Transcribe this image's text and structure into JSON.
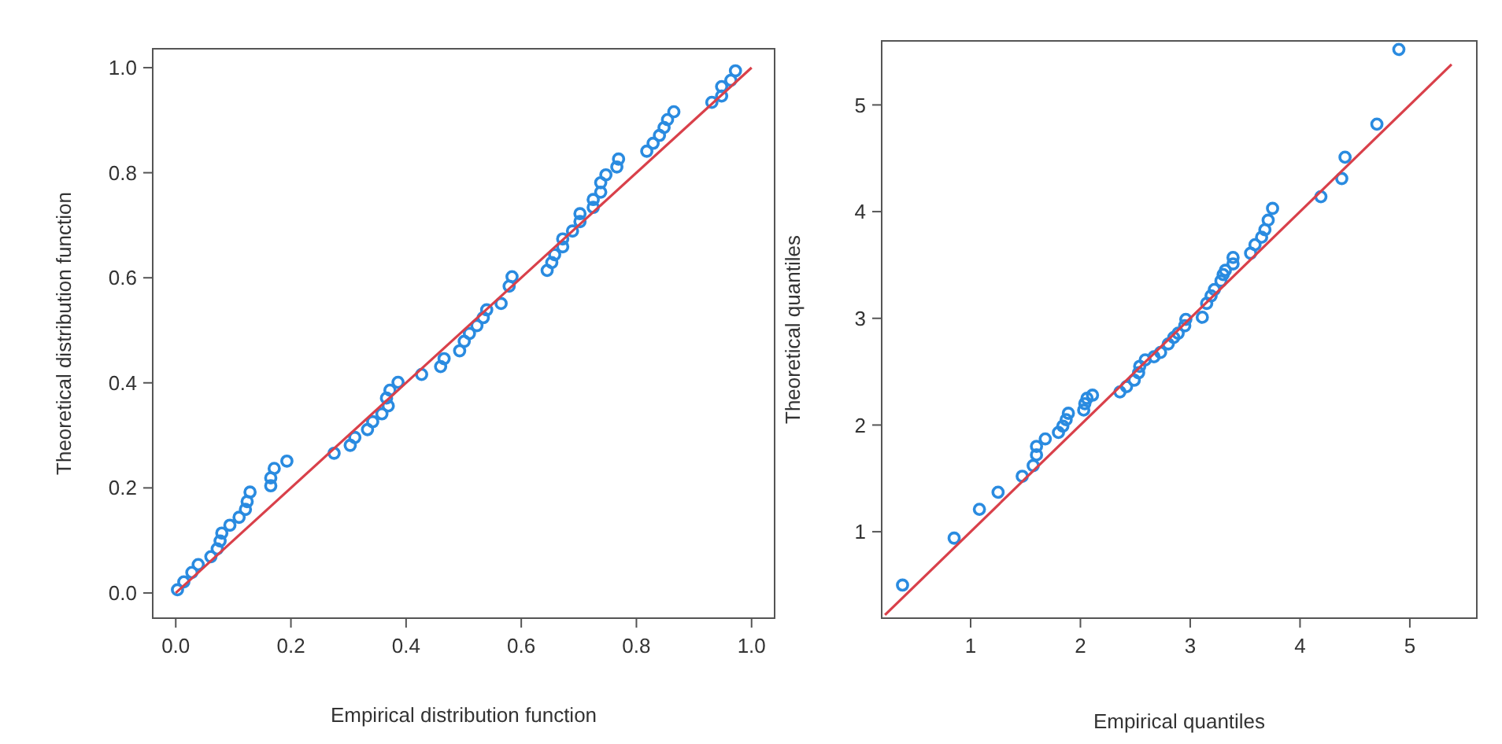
{
  "chart_data": [
    {
      "type": "scatter",
      "xlabel": "Empirical distribution function",
      "ylabel": "Theoretical distribution function",
      "xlim": [
        -0.04,
        1.04
      ],
      "ylim": [
        -0.048,
        1.036
      ],
      "xticks": [
        {
          "value": 0,
          "label": "0.0"
        },
        {
          "value": 0.2,
          "label": "0.2"
        },
        {
          "value": 0.4,
          "label": "0.4"
        },
        {
          "value": 0.6,
          "label": "0.6"
        },
        {
          "value": 0.8,
          "label": "0.8"
        },
        {
          "value": 1,
          "label": "1.0"
        }
      ],
      "yticks": [
        {
          "value": 0,
          "label": "0.0"
        },
        {
          "value": 0.2,
          "label": "0.2"
        },
        {
          "value": 0.4,
          "label": "0.4"
        },
        {
          "value": 0.6,
          "label": "0.6"
        },
        {
          "value": 0.8,
          "label": "0.8"
        },
        {
          "value": 1,
          "label": "1.0"
        }
      ],
      "series": [
        {
          "marker": "circle",
          "color": "#2a8be0",
          "x": [
            0.003,
            0.014,
            0.028,
            0.039,
            0.061,
            0.072,
            0.077,
            0.08,
            0.094,
            0.11,
            0.121,
            0.124,
            0.129,
            0.165,
            0.165,
            0.171,
            0.193,
            0.275,
            0.303,
            0.311,
            0.333,
            0.342,
            0.358,
            0.369,
            0.366,
            0.372,
            0.386,
            0.427,
            0.46,
            0.466,
            0.493,
            0.501,
            0.51,
            0.523,
            0.534,
            0.54,
            0.565,
            0.579,
            0.584,
            0.645,
            0.653,
            0.658,
            0.672,
            0.672,
            0.689,
            0.702,
            0.702,
            0.725,
            0.725,
            0.738,
            0.738,
            0.747,
            0.766,
            0.769,
            0.818,
            0.829,
            0.84,
            0.848,
            0.854,
            0.865,
            0.931,
            0.948,
            0.948,
            0.964,
            0.972
          ],
          "values": [
            0.006,
            0.021,
            0.039,
            0.054,
            0.069,
            0.084,
            0.099,
            0.114,
            0.129,
            0.144,
            0.159,
            0.174,
            0.192,
            0.204,
            0.219,
            0.237,
            0.251,
            0.266,
            0.281,
            0.296,
            0.311,
            0.326,
            0.341,
            0.356,
            0.371,
            0.386,
            0.401,
            0.416,
            0.431,
            0.446,
            0.461,
            0.479,
            0.494,
            0.509,
            0.524,
            0.539,
            0.551,
            0.584,
            0.602,
            0.614,
            0.629,
            0.644,
            0.659,
            0.674,
            0.689,
            0.707,
            0.722,
            0.734,
            0.749,
            0.763,
            0.781,
            0.796,
            0.811,
            0.826,
            0.841,
            0.856,
            0.871,
            0.886,
            0.901,
            0.916,
            0.934,
            0.946,
            0.964,
            0.976,
            0.994
          ]
        },
        {
          "type": "line",
          "marker": "none",
          "color": "#d9404a",
          "x": [
            0,
            1
          ],
          "values": [
            0,
            1
          ]
        }
      ]
    },
    {
      "type": "scatter",
      "xlabel": "Empirical quantiles",
      "ylabel": "Theoretical quantiles",
      "xlim": [
        0.19,
        5.61
      ],
      "ylim": [
        0.19,
        5.6
      ],
      "xticks": [
        1,
        2,
        3,
        4,
        5
      ],
      "yticks": [
        1,
        2,
        3,
        4,
        5
      ],
      "series": [
        {
          "marker": "circle",
          "color": "#2a8be0",
          "x": [
            0.38,
            0.85,
            1.08,
            1.25,
            1.47,
            1.57,
            1.6,
            1.6,
            1.68,
            1.8,
            1.84,
            1.87,
            1.89,
            2.03,
            2.04,
            2.06,
            2.11,
            2.36,
            2.42,
            2.49,
            2.53,
            2.54,
            2.59,
            2.67,
            2.73,
            2.8,
            2.85,
            2.89,
            2.95,
            2.96,
            3.11,
            3.15,
            3.19,
            3.22,
            3.28,
            3.3,
            3.32,
            3.39,
            3.39,
            3.55,
            3.59,
            3.65,
            3.68,
            3.71,
            3.75,
            4.19,
            4.38,
            4.41,
            4.7,
            4.9
          ],
          "values": [
            0.5,
            0.94,
            1.21,
            1.37,
            1.52,
            1.62,
            1.72,
            1.8,
            1.87,
            1.93,
            1.99,
            2.05,
            2.11,
            2.14,
            2.2,
            2.25,
            2.28,
            2.31,
            2.36,
            2.42,
            2.49,
            2.55,
            2.61,
            2.64,
            2.68,
            2.76,
            2.82,
            2.86,
            2.93,
            2.99,
            3.01,
            3.14,
            3.21,
            3.27,
            3.35,
            3.41,
            3.45,
            3.51,
            3.57,
            3.61,
            3.69,
            3.76,
            3.83,
            3.92,
            4.03,
            4.14,
            4.31,
            4.51,
            4.82,
            5.52
          ]
        },
        {
          "type": "line",
          "marker": "none",
          "color": "#d9404a",
          "x": [
            0.22,
            5.38
          ],
          "values": [
            0.22,
            5.38
          ]
        }
      ]
    }
  ]
}
